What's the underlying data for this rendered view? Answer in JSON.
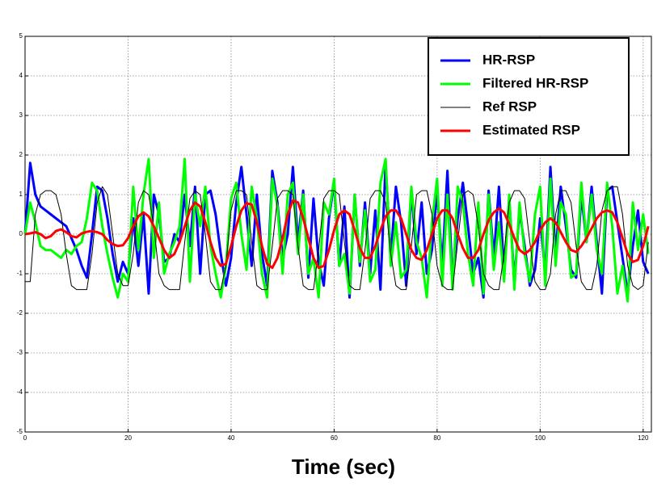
{
  "chart_data": {
    "type": "line",
    "xlabel": "Time (sec)",
    "x": [
      0,
      1,
      2,
      3,
      4,
      5,
      6,
      7,
      8,
      9,
      10,
      11,
      12,
      13,
      14,
      15,
      16,
      17,
      18,
      19,
      20,
      21,
      22,
      23,
      24,
      25,
      26,
      27,
      28,
      29,
      30,
      31,
      32,
      33,
      34,
      35,
      36,
      37,
      38,
      39,
      40,
      41,
      42,
      43,
      44,
      45,
      46,
      47,
      48,
      49,
      50,
      51,
      52,
      53,
      54,
      55,
      56,
      57,
      58,
      59,
      60,
      61,
      62,
      63,
      64,
      65,
      66,
      67,
      68,
      69,
      70,
      71,
      72,
      73,
      74,
      75,
      76,
      77,
      78,
      79,
      80,
      81,
      82,
      83,
      84,
      85,
      86,
      87,
      88,
      89,
      90,
      91,
      92,
      93,
      94,
      95,
      96,
      97,
      98,
      99,
      100,
      101,
      102,
      103,
      104,
      105,
      106,
      107,
      108,
      109,
      110,
      111,
      112,
      113,
      114,
      115,
      116,
      117,
      118,
      119,
      120,
      121
    ],
    "series": [
      {
        "name": "HR-RSP",
        "color": "#0000ff",
        "width": 3,
        "values": [
          0,
          1.8,
          1.0,
          0.7,
          0.6,
          0.5,
          0.4,
          0.3,
          0.2,
          -0.1,
          -0.4,
          -0.8,
          -1.1,
          0,
          1.2,
          1.1,
          0.4,
          -0.5,
          -1.2,
          -0.7,
          -1.0,
          0.4,
          -0.8,
          0.5,
          -1.5,
          1.0,
          0.5,
          -0.7,
          -0.6,
          0.0,
          -0.2,
          1.0,
          -0.3,
          1.2,
          -1.0,
          1.0,
          1.1,
          0.5,
          -0.5,
          -1.3,
          -0.6,
          0.8,
          1.7,
          0.5,
          -0.8,
          1.0,
          -0.5,
          -1.3,
          1.6,
          0.8,
          -0.6,
          0.0,
          1.7,
          -0.2,
          1.1,
          -1.1,
          0.9,
          -0.7,
          -1.3,
          0.4,
          1.3,
          -0.8,
          0.7,
          -1.6,
          1.0,
          -0.8,
          0.8,
          -1.0,
          0.6,
          -1.4,
          1.8,
          -0.6,
          1.2,
          0.3,
          -1.3,
          1.1,
          -0.5,
          0.8,
          -1.0,
          -0.4,
          1.1,
          -0.8,
          1.6,
          -1.2,
          0.4,
          1.3,
          0.2,
          -1.0,
          -0.6,
          -1.6,
          1.1,
          -0.6,
          1.2,
          -0.9,
          0.9,
          -1.2,
          0.6,
          -0.3,
          -1.3,
          -0.9,
          0.4,
          -1.0,
          1.7,
          -0.5,
          1.2,
          0.2,
          -0.9,
          -1.1,
          1.0,
          -0.2,
          1.2,
          -0.2,
          -1.5,
          1.1,
          1.2,
          0.3,
          -0.6,
          -1.5,
          -0.3,
          0.6,
          -0.7,
          -1.0
        ]
      },
      {
        "name": "Filtered HR-RSP",
        "color": "#00ff00",
        "width": 3,
        "values": [
          0,
          0.8,
          0.3,
          -0.3,
          -0.4,
          -0.4,
          -0.5,
          -0.6,
          -0.4,
          -0.5,
          -0.3,
          -0.2,
          0.4,
          1.3,
          1.1,
          0.2,
          -0.5,
          -1.1,
          -1.6,
          -1.0,
          -1.2,
          1.2,
          -0.4,
          1.0,
          1.9,
          -0.6,
          0.8,
          -1.0,
          -0.5,
          -0.2,
          0.2,
          1.9,
          -1.2,
          1.0,
          0.2,
          1.2,
          -0.3,
          -1.0,
          -1.6,
          -0.8,
          0.9,
          1.3,
          0.0,
          -0.9,
          1.2,
          0.4,
          -1.0,
          -1.6,
          1.4,
          0.7,
          -1.0,
          1.0,
          1.3,
          -0.5,
          1.0,
          -1.0,
          -0.6,
          -1.6,
          0.8,
          0.5,
          1.4,
          -0.8,
          -0.5,
          -1.5,
          1.0,
          -0.7,
          0.6,
          -1.2,
          -0.9,
          1.3,
          1.9,
          -0.8,
          0.3,
          -1.1,
          -0.9,
          1.2,
          -0.2,
          -0.6,
          -1.6,
          0.3,
          1.4,
          -1.3,
          1.0,
          -1.4,
          1.2,
          0.8,
          -0.5,
          -1.3,
          0.8,
          -1.5,
          1.0,
          -0.9,
          0.3,
          -1.2,
          1.0,
          -1.4,
          0.8,
          -0.5,
          -1.2,
          0.5,
          1.2,
          -1.3,
          1.4,
          -0.8,
          0.8,
          0.5,
          -1.1,
          -1.0,
          1.3,
          -0.2,
          1.0,
          -0.4,
          -1.0,
          1.3,
          0.2,
          -1.5,
          -0.8,
          -1.7,
          0.8,
          -0.4,
          0.5,
          -0.5
        ]
      },
      {
        "name": "Ref RSP",
        "color": "#000000",
        "width": 1,
        "values": [
          -1.2,
          -1.2,
          0.5,
          1.0,
          1.1,
          1.1,
          1.0,
          0.5,
          -0.5,
          -1.3,
          -1.4,
          -1.4,
          -1.4,
          -0.5,
          0.8,
          1.2,
          1.0,
          0,
          -1.0,
          -1.3,
          -1.3,
          -0.5,
          0.8,
          1.1,
          1.0,
          0.2,
          -1.0,
          -1.3,
          -1.4,
          -1.4,
          -1.4,
          -0.2,
          0.9,
          1.1,
          1.0,
          0,
          -1.2,
          -1.4,
          -1.4,
          -0.8,
          0.6,
          1.1,
          1.1,
          1.0,
          -0.2,
          -1.3,
          -1.4,
          -1.4,
          -0.3,
          0.9,
          1.1,
          1.1,
          1.0,
          -0.3,
          -1.3,
          -1.4,
          -1.4,
          -0.4,
          0.9,
          1.1,
          1.1,
          1.0,
          -0.2,
          -1.3,
          -1.4,
          -1.4,
          -0.4,
          0.9,
          1.1,
          1.1,
          0.8,
          -0.5,
          -1.3,
          -1.4,
          -1.4,
          -0.3,
          1.0,
          1.1,
          1.1,
          0.5,
          -0.8,
          -1.3,
          -1.4,
          -1.4,
          -0.2,
          1.0,
          1.1,
          1.0,
          0.2,
          -1.0,
          -1.3,
          -1.4,
          -1.4,
          -0.5,
          0.8,
          1.1,
          1.1,
          0.9,
          -0.2,
          -1.2,
          -1.4,
          -1.4,
          -1.0,
          0.5,
          1.1,
          1.1,
          0.8,
          -0.3,
          -1.2,
          -1.4,
          -1.4,
          -0.8,
          0.6,
          1.1,
          1.2,
          1.2,
          0.5,
          -0.8,
          -1.3,
          -1.4,
          -1.3,
          -0.2
        ]
      },
      {
        "name": "Estimated RSP",
        "color": "#ff0000",
        "width": 3,
        "values": [
          0,
          0.02,
          0.05,
          0,
          -0.1,
          -0.05,
          0.08,
          0.12,
          0.05,
          -0.05,
          -0.08,
          0.02,
          0.06,
          0.08,
          0.05,
          0,
          -0.15,
          -0.25,
          -0.3,
          -0.28,
          -0.1,
          0.2,
          0.45,
          0.55,
          0.45,
          0.2,
          -0.1,
          -0.4,
          -0.6,
          -0.5,
          -0.2,
          0.2,
          0.6,
          0.8,
          0.7,
          0.3,
          -0.2,
          -0.6,
          -0.8,
          -0.75,
          -0.3,
          0.2,
          0.6,
          0.78,
          0.75,
          0.3,
          -0.3,
          -0.75,
          -0.85,
          -0.6,
          -0.1,
          0.5,
          0.85,
          0.8,
          0.4,
          -0.1,
          -0.6,
          -0.85,
          -0.8,
          -0.4,
          0.1,
          0.5,
          0.6,
          0.5,
          0.1,
          -0.35,
          -0.6,
          -0.6,
          -0.3,
          0.1,
          0.45,
          0.6,
          0.6,
          0.4,
          0,
          -0.4,
          -0.6,
          -0.65,
          -0.4,
          0,
          0.4,
          0.6,
          0.6,
          0.4,
          0,
          -0.35,
          -0.6,
          -0.6,
          -0.4,
          0,
          0.35,
          0.55,
          0.65,
          0.55,
          0.25,
          -0.1,
          -0.4,
          -0.5,
          -0.4,
          -0.2,
          0.1,
          0.3,
          0.4,
          0.3,
          0.05,
          -0.2,
          -0.4,
          -0.45,
          -0.3,
          -0.1,
          0.15,
          0.4,
          0.55,
          0.6,
          0.55,
          0.3,
          -0.1,
          -0.5,
          -0.7,
          -0.65,
          -0.3,
          0.2
        ]
      }
    ],
    "xlim": [
      0,
      121.6
    ],
    "ylim": [
      -5,
      5
    ],
    "xticks": [
      0,
      20,
      40,
      60,
      80,
      100,
      120
    ],
    "yticks": [
      -5,
      -4,
      -3,
      -2,
      -1,
      0,
      1,
      2,
      3,
      4,
      5
    ],
    "grid": true,
    "legend": "upper right"
  }
}
